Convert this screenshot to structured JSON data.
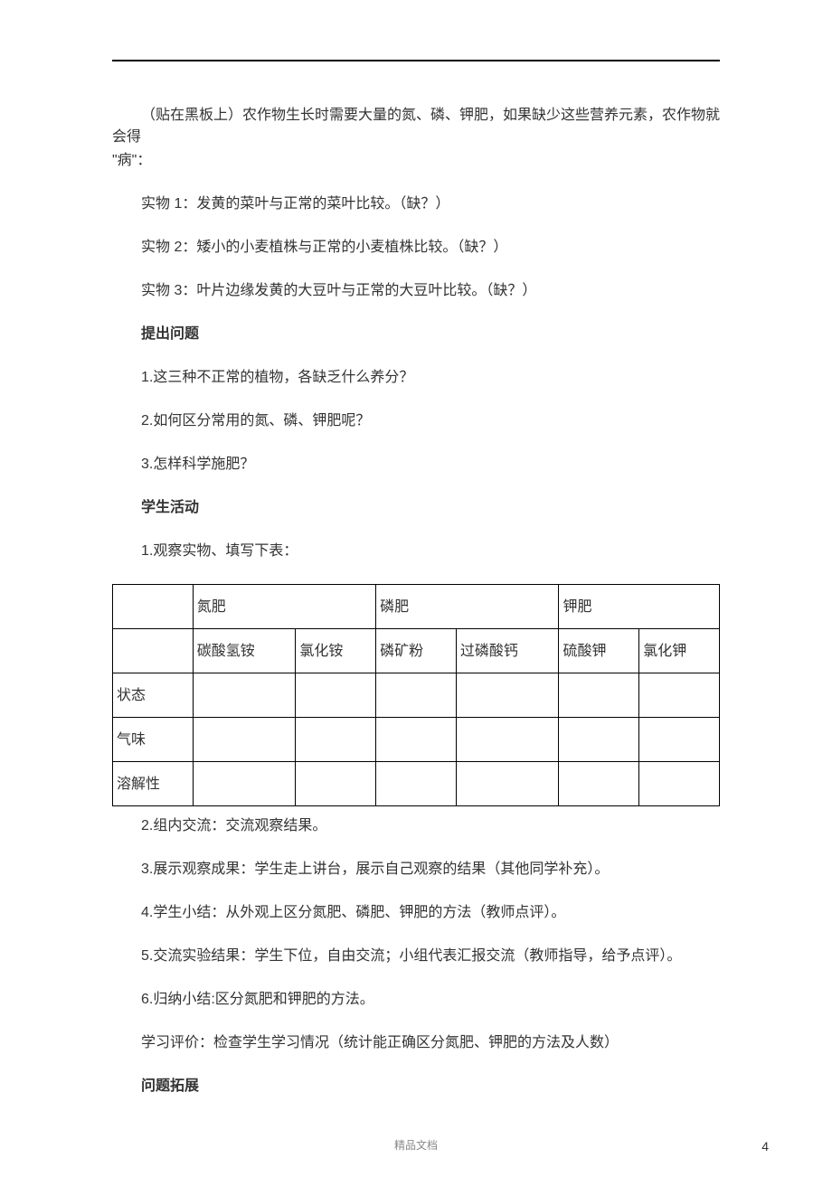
{
  "intro": {
    "line1": "（贴在黑板上）农作物生长时需要大量的氮、磷、钾肥，如果缺少这些营养元素，农作物就会得",
    "line2": "\"病\"：",
    "sample1": "实物 1：发黄的菜叶与正常的菜叶比较。（缺？）",
    "sample2": "实物 2：矮小的小麦植株与正常的小麦植株比较。（缺？）",
    "sample3": "实物 3：叶片边缘发黄的大豆叶与正常的大豆叶比较。（缺？）"
  },
  "questions": {
    "heading": "提出问题",
    "q1": "1.这三种不正常的植物，各缺乏什么养分？",
    "q2": "2.如何区分常用的氮、磷、钾肥呢？",
    "q3": "3.怎样科学施肥？"
  },
  "activity": {
    "heading": "学生活动",
    "s1": "1.观察实物、填写下表："
  },
  "table": {
    "header": {
      "c1": "",
      "c2": "氮肥",
      "c3": "磷肥",
      "c4": "钾肥"
    },
    "sub": {
      "c1": "",
      "c2a": "碳酸氢铵",
      "c2b": "氯化铵",
      "c3a": "磷矿粉",
      "c3b": "过磷酸钙",
      "c4a": "硫酸钾",
      "c4b": "氯化钾"
    },
    "rows": {
      "r1": {
        "label": "状态"
      },
      "r2": {
        "label": "气味"
      },
      "r3": {
        "label": "溶解性"
      }
    }
  },
  "post": {
    "s2": "2.组内交流：交流观察结果。",
    "s3": "3.展示观察成果：学生走上讲台，展示自己观察的结果（其他同学补充）。",
    "s4": "4.学生小结：从外观上区分氮肥、磷肥、钾肥的方法（教师点评）。",
    "s5": "5.交流实验结果：学生下位，自由交流；小组代表汇报交流（教师指导，给予点评）。",
    "s6": "6.归纳小结:区分氮肥和钾肥的方法。",
    "eval": "学习评价：检查学生学习情况（统计能正确区分氮肥、钾肥的方法及人数）",
    "ext": "问题拓展"
  },
  "footer": {
    "text": "精品文档",
    "pagenum": "4"
  }
}
